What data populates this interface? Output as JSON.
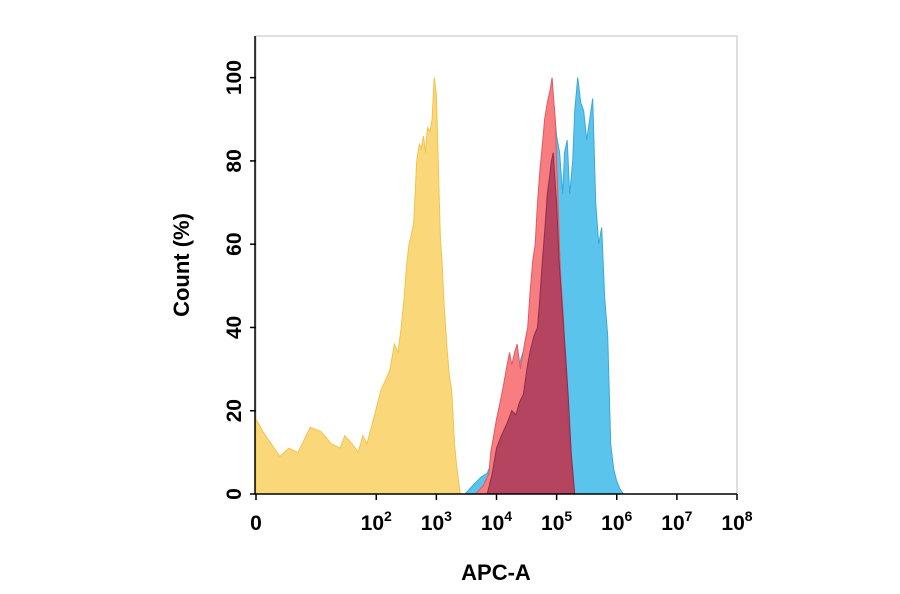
{
  "chart_data": {
    "type": "area",
    "title": "",
    "xlabel": "APC-A",
    "ylabel": "Count  (%)",
    "x_scale": "log",
    "xlim": [
      1,
      100000000
    ],
    "ylim": [
      0,
      110
    ],
    "grid": false,
    "legend": "none",
    "x_ticks": [
      {
        "value": 1,
        "base": "0",
        "exp": ""
      },
      {
        "value": 100,
        "base": "10",
        "exp": "2"
      },
      {
        "value": 1000,
        "base": "10",
        "exp": "3"
      },
      {
        "value": 10000,
        "base": "10",
        "exp": "4"
      },
      {
        "value": 100000,
        "base": "10",
        "exp": "5"
      },
      {
        "value": 1000000,
        "base": "10",
        "exp": "6"
      },
      {
        "value": 10000000,
        "base": "10",
        "exp": "7"
      },
      {
        "value": 100000000,
        "base": "10",
        "exp": "8"
      }
    ],
    "y_ticks": [
      0,
      20,
      40,
      60,
      80,
      100
    ],
    "series": [
      {
        "color": "#5bc4ec",
        "stroke": "#3aa9d8",
        "points": [
          [
            3000,
            0
          ],
          [
            4000,
            2
          ],
          [
            5500,
            4
          ],
          [
            7000,
            5
          ],
          [
            8500,
            8
          ],
          [
            10000,
            12
          ],
          [
            13000,
            16
          ],
          [
            17000,
            22
          ],
          [
            21000,
            28
          ],
          [
            26000,
            33
          ],
          [
            31000,
            36
          ],
          [
            36000,
            40
          ],
          [
            42000,
            48
          ],
          [
            50000,
            58
          ],
          [
            60000,
            66
          ],
          [
            66000,
            72
          ],
          [
            72000,
            80
          ],
          [
            79000,
            90
          ],
          [
            88000,
            95
          ],
          [
            100000,
            86
          ],
          [
            112000,
            82
          ],
          [
            126000,
            72
          ],
          [
            135000,
            82
          ],
          [
            150000,
            85
          ],
          [
            165000,
            72
          ],
          [
            185000,
            80
          ],
          [
            200000,
            92
          ],
          [
            224000,
            100
          ],
          [
            251000,
            94
          ],
          [
            282000,
            92
          ],
          [
            316000,
            85
          ],
          [
            355000,
            90
          ],
          [
            398000,
            95
          ],
          [
            447000,
            70
          ],
          [
            501000,
            60
          ],
          [
            562000,
            64
          ],
          [
            631000,
            47
          ],
          [
            708000,
            38
          ],
          [
            794000,
            12
          ],
          [
            891000,
            6
          ],
          [
            1000000,
            3
          ],
          [
            1150000,
            1
          ],
          [
            1300000,
            0
          ]
        ]
      },
      {
        "color": "#f87d80",
        "stroke": "#e05a60",
        "points": [
          [
            4500,
            0
          ],
          [
            6000,
            2
          ],
          [
            7500,
            5
          ],
          [
            8000,
            10
          ],
          [
            9000,
            14
          ],
          [
            10000,
            18
          ],
          [
            11500,
            22
          ],
          [
            13000,
            26
          ],
          [
            15000,
            31
          ],
          [
            16500,
            34
          ],
          [
            18000,
            31
          ],
          [
            20000,
            34
          ],
          [
            22000,
            36
          ],
          [
            25000,
            30
          ],
          [
            27000,
            33
          ],
          [
            30000,
            37
          ],
          [
            33000,
            40
          ],
          [
            36000,
            48
          ],
          [
            40000,
            56
          ],
          [
            44000,
            60
          ],
          [
            48000,
            70
          ],
          [
            53000,
            78
          ],
          [
            58000,
            84
          ],
          [
            63000,
            90
          ],
          [
            70000,
            94
          ],
          [
            78000,
            97
          ],
          [
            84000,
            100
          ],
          [
            89000,
            95
          ],
          [
            95000,
            90
          ],
          [
            100000,
            80
          ],
          [
            115000,
            54
          ],
          [
            130000,
            42
          ],
          [
            150000,
            20
          ],
          [
            170000,
            8
          ],
          [
            200000,
            0
          ]
        ]
      },
      {
        "color": "#a83a5a",
        "stroke": "#8e2e4c",
        "opacity": 0.85,
        "points": [
          [
            7000,
            0
          ],
          [
            8500,
            5
          ],
          [
            10000,
            11
          ],
          [
            12000,
            14
          ],
          [
            15000,
            17
          ],
          [
            18000,
            20
          ],
          [
            21000,
            19
          ],
          [
            24000,
            22
          ],
          [
            28000,
            24
          ],
          [
            32000,
            30
          ],
          [
            36000,
            34
          ],
          [
            42000,
            38
          ],
          [
            48000,
            40
          ],
          [
            52000,
            46
          ],
          [
            58000,
            56
          ],
          [
            64000,
            64
          ],
          [
            70000,
            72
          ],
          [
            76000,
            76
          ],
          [
            82000,
            80
          ],
          [
            88000,
            82
          ],
          [
            95000,
            74
          ],
          [
            100000,
            70
          ],
          [
            110000,
            56
          ],
          [
            125000,
            44
          ],
          [
            140000,
            34
          ],
          [
            155000,
            24
          ],
          [
            175000,
            10
          ],
          [
            200000,
            0
          ]
        ]
      },
      {
        "color": "#fad87a",
        "stroke": "#f1c34d",
        "points": [
          [
            1,
            18
          ],
          [
            1.3,
            15
          ],
          [
            1.8,
            12
          ],
          [
            2.5,
            9
          ],
          [
            3.5,
            11
          ],
          [
            5,
            10
          ],
          [
            8,
            16
          ],
          [
            12,
            15
          ],
          [
            18,
            12
          ],
          [
            25,
            11
          ],
          [
            30,
            14
          ],
          [
            40,
            12
          ],
          [
            50,
            10
          ],
          [
            60,
            14
          ],
          [
            70,
            12
          ],
          [
            90,
            18
          ],
          [
            120,
            25
          ],
          [
            150,
            28
          ],
          [
            170,
            30
          ],
          [
            200,
            36
          ],
          [
            230,
            34
          ],
          [
            260,
            40
          ],
          [
            290,
            47
          ],
          [
            320,
            55
          ],
          [
            350,
            60
          ],
          [
            380,
            62
          ],
          [
            420,
            65
          ],
          [
            470,
            80
          ],
          [
            520,
            84
          ],
          [
            560,
            83
          ],
          [
            610,
            86
          ],
          [
            660,
            82
          ],
          [
            710,
            88
          ],
          [
            780,
            87
          ],
          [
            850,
            90
          ],
          [
            920,
            100
          ],
          [
            1000,
            96
          ],
          [
            1080,
            78
          ],
          [
            1160,
            62
          ],
          [
            1250,
            55
          ],
          [
            1350,
            45
          ],
          [
            1500,
            35
          ],
          [
            1650,
            28
          ],
          [
            1800,
            25
          ],
          [
            2000,
            12
          ],
          [
            2200,
            6
          ],
          [
            2500,
            0
          ]
        ]
      }
    ]
  }
}
